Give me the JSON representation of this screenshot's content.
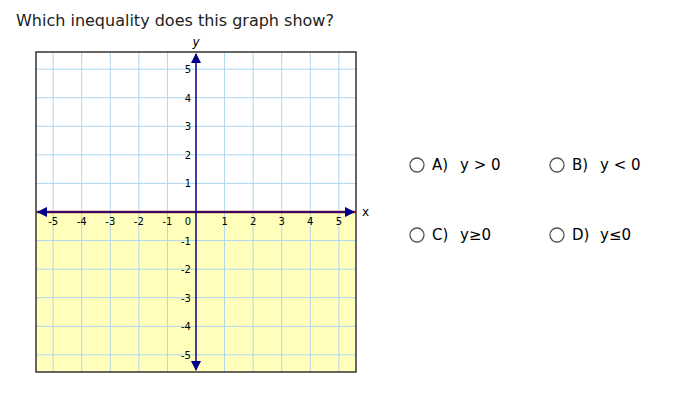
{
  "chart_data": {
    "type": "inequality",
    "title": "Which inequality does this graph show?",
    "xlabel": "x",
    "ylabel": "y",
    "xlim": [
      -5.6,
      5.6
    ],
    "ylim": [
      -5.6,
      5.6
    ],
    "xticks": [
      -5,
      -4,
      -3,
      -2,
      -1,
      1,
      2,
      3,
      4,
      5
    ],
    "yticks": [
      -5,
      -4,
      -3,
      -2,
      -1,
      1,
      2,
      3,
      4,
      5
    ],
    "grid": true,
    "boundary": {
      "y": 0,
      "color": "#cc2200",
      "line_style": "solid"
    },
    "shade": {
      "side": "below",
      "color": "#ffffbb"
    },
    "axis_color": "#00008b",
    "annotations": [
      {
        "text": "0",
        "x": 0,
        "y": 0
      }
    ],
    "choices": [
      {
        "label": "A)",
        "expr": "y > 0"
      },
      {
        "label": "B)",
        "expr": "y < 0"
      },
      {
        "label": "C)",
        "expr": "y≥0"
      },
      {
        "label": "D)",
        "expr": "y≤0"
      }
    ]
  }
}
